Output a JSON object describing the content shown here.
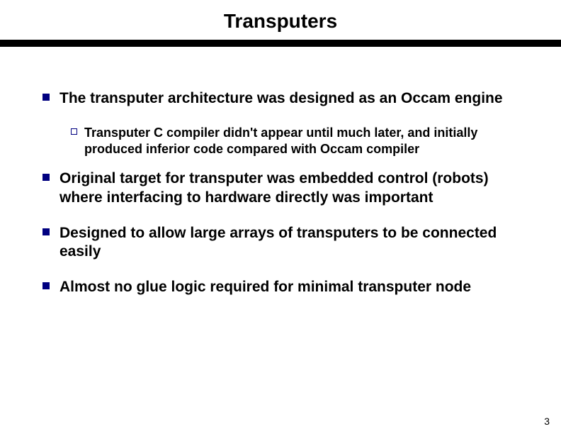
{
  "title": "Transputers",
  "title_fontsize": 28,
  "title_color": "#000000",
  "divider": {
    "height": 10,
    "color": "#000000"
  },
  "body_fontsize": 21,
  "sub_fontsize": 18,
  "bullet": {
    "size": 10,
    "color": "#000080"
  },
  "sub_bullet": {
    "size": 9,
    "border_color": "#000080",
    "fill": "#ffffff"
  },
  "bullets": [
    {
      "text": "The transputer architecture was designed as an Occam engine",
      "sub": [
        "Transputer C compiler didn't appear until much later, and initially produced inferior code compared with Occam compiler"
      ]
    },
    {
      "text": "Original target for transputer was embedded control (robots) where interfacing to hardware directly was important",
      "sub": []
    },
    {
      "text": "Designed to allow large arrays of transputers to be connected easily",
      "sub": []
    },
    {
      "text": "Almost no glue logic required for minimal transputer node",
      "sub": []
    }
  ],
  "page_number": "3",
  "page_number_fontsize": 14
}
